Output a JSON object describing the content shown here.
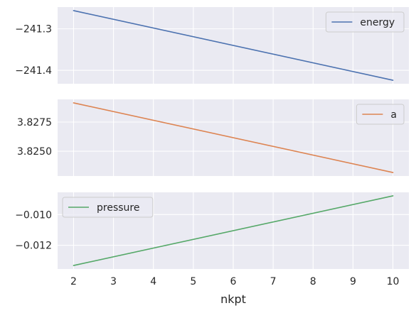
{
  "chart_data": {
    "type": "line",
    "style": {
      "panel_background": "#eaeaf2",
      "grid_color": "#ffffff",
      "legend_border": "#cccccc",
      "legend_background": "#eaeaf2"
    },
    "x": {
      "label": "nkpt",
      "ticks": [
        2,
        3,
        4,
        5,
        6,
        7,
        8,
        9,
        10
      ],
      "tick_labels": [
        "2",
        "3",
        "4",
        "5",
        "6",
        "7",
        "8",
        "9",
        "10"
      ],
      "lim": [
        1.6,
        10.4
      ],
      "shared": true
    },
    "panels": [
      {
        "series": [
          {
            "name": "energy",
            "color": "#4c72b0",
            "x": [
              2,
              10
            ],
            "y": [
              -241.256,
              -241.424
            ]
          }
        ],
        "ylim": [
          -241.4324,
          -241.2476
        ],
        "yticks": [
          -241.4,
          -241.3
        ],
        "ytick_labels": [
          "−241.4",
          "−241.3"
        ],
        "legend": "upper right",
        "grid": true
      },
      {
        "series": [
          {
            "name": "a",
            "color": "#dd8452",
            "x": [
              2,
              10
            ],
            "y": [
              3.82915,
              3.82317
            ]
          }
        ],
        "ylim": [
          3.822871,
          3.829449
        ],
        "yticks": [
          3.825,
          3.8275
        ],
        "ytick_labels": [
          "3.8250",
          "3.8275"
        ],
        "legend": "upper right",
        "grid": true
      },
      {
        "series": [
          {
            "name": "pressure",
            "color": "#55a868",
            "x": [
              2,
              10
            ],
            "y": [
              -0.01332,
              -0.00878
            ]
          }
        ],
        "ylim": [
          -0.013547,
          -0.008553
        ],
        "yticks": [
          -0.012,
          -0.01
        ],
        "ytick_labels": [
          "−0.012",
          "−0.010"
        ],
        "legend": "upper left",
        "grid": true
      }
    ]
  }
}
